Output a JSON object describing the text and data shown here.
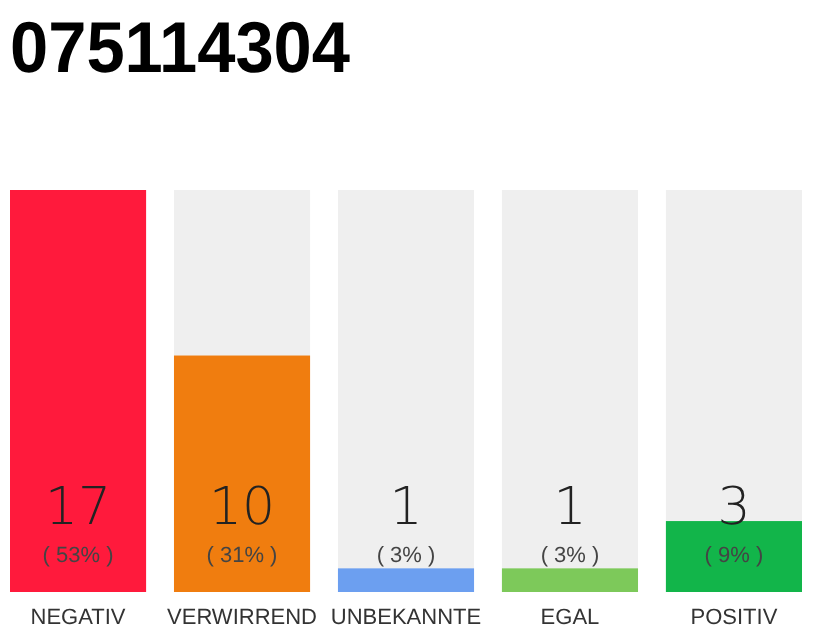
{
  "chart_data": {
    "type": "bar",
    "title": "075114304",
    "categories": [
      "NEGATIV",
      "VERWIRREND",
      "UNBEKANNTE",
      "EGAL",
      "POSITIV"
    ],
    "values": [
      17,
      10,
      1,
      1,
      3
    ],
    "colors": [
      "#ff1a3c",
      "#f07d0f",
      "#6c9ff0",
      "#7dc95a",
      "#12b54a"
    ],
    "data_labels": true,
    "annotations": [
      "( 53% )",
      "( 31% )",
      "( 3% )",
      "( 3% )",
      "( 9% )"
    ]
  }
}
